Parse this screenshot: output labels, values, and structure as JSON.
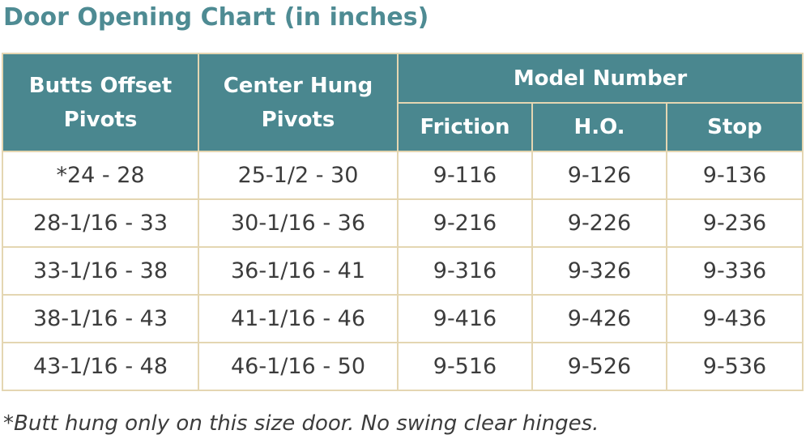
{
  "title": "Door Opening Chart (in inches)",
  "table": {
    "headers": {
      "butts_offset": [
        "Butts Offset",
        "Pivots"
      ],
      "center_hung": [
        "Center Hung",
        "Pivots"
      ],
      "model_number": "Model Number",
      "friction": "Friction",
      "ho": "H.O.",
      "stop": "Stop"
    },
    "rows": [
      {
        "butts": "*24 - 28",
        "center": "25-1/2 - 30",
        "friction": "9-116",
        "ho": "9-126",
        "stop": "9-136"
      },
      {
        "butts": "28-1/16 - 33",
        "center": "30-1/16 - 36",
        "friction": "9-216",
        "ho": "9-226",
        "stop": "9-236"
      },
      {
        "butts": "33-1/16 - 38",
        "center": "36-1/16 - 41",
        "friction": "9-316",
        "ho": "9-326",
        "stop": "9-336"
      },
      {
        "butts": "38-1/16 - 43",
        "center": "41-1/16 - 46",
        "friction": "9-416",
        "ho": "9-426",
        "stop": "9-436"
      },
      {
        "butts": "43-1/16 - 48",
        "center": "46-1/16 - 50",
        "friction": "9-516",
        "ho": "9-526",
        "stop": "9-536"
      }
    ]
  },
  "footnote": "*Butt hung only on this size door. No swing clear hinges.",
  "colors": {
    "title": "#4e8b93",
    "header_bg": "#4a878f",
    "header_text": "#ffffff",
    "grid": "#e4d6b2",
    "cell_text": "#3c3c3c"
  }
}
